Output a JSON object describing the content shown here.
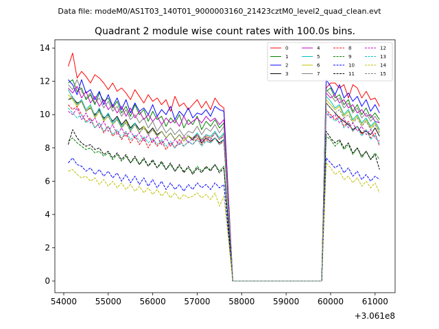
{
  "chart_data": {
    "type": "line",
    "suptitle": "Data file: modeM0/AS1T03_140T01_9000003160_21423cztM0_level2_quad_clean.evt",
    "title": "Quadrant 2 module wise count rates with 100.0s bins.",
    "xlabel": "",
    "ylabel": "",
    "offset_label": "+3.061e8",
    "xlim": [
      53800,
      61450
    ],
    "ylim": [
      -0.7,
      14.5
    ],
    "xticks": [
      54000,
      55000,
      56000,
      57000,
      58000,
      59000,
      60000,
      61000
    ],
    "xtick_labels": [
      "54000",
      "55000",
      "56000",
      "57000",
      "58000",
      "59000",
      "60000",
      "61000"
    ],
    "yticks": [
      0,
      2,
      4,
      6,
      8,
      10,
      12,
      14
    ],
    "ytick_labels": [
      "0",
      "2",
      "4",
      "6",
      "8",
      "10",
      "12",
      "14"
    ],
    "x_segments": {
      "active1": {
        "start": 54100,
        "step": 100,
        "count": 36
      },
      "gap": {
        "start": 57800,
        "end": 59800
      },
      "active2": {
        "start": 59900,
        "step": 100,
        "count": 13
      }
    },
    "series": [
      {
        "name": "0",
        "color": "#ff0000",
        "dash": "solid",
        "values": [
          12.9,
          13.7,
          12.2,
          12.6,
          12.3,
          11.9,
          12.4,
          12.2,
          11.9,
          11.5,
          11.9,
          11.4,
          11.6,
          11.3,
          10.9,
          11.5,
          11.1,
          10.7,
          11.2,
          10.8,
          11.0,
          10.6,
          10.9,
          10.2,
          11.1,
          10.5,
          10.7,
          10.3,
          10.6,
          10.9,
          10.4,
          10.8,
          10.3,
          11.0,
          10.6,
          10.4
        ],
        "values2": [
          11.6,
          11.9,
          11.9,
          11.6,
          11.8,
          11.0,
          11.8,
          11.6,
          11.0,
          11.4,
          10.9,
          11.0,
          10.5
        ]
      },
      {
        "name": "1",
        "color": "#008000",
        "dash": "solid",
        "values": [
          11.9,
          12.1,
          11.4,
          11.6,
          10.9,
          11.2,
          10.6,
          11.3,
          10.8,
          11.0,
          10.4,
          10.8,
          10.1,
          10.5,
          9.9,
          10.6,
          10.0,
          10.3,
          9.6,
          10.2,
          9.7,
          9.9,
          9.3,
          9.8,
          9.5,
          10.0,
          9.2,
          9.7,
          9.4,
          9.9,
          9.1,
          9.6,
          9.3,
          9.7,
          9.2,
          9.5
        ],
        "values2": [
          11.4,
          11.6,
          11.0,
          11.2,
          10.6,
          10.9,
          10.2,
          10.6,
          10.0,
          10.4,
          9.8,
          10.1,
          9.7
        ]
      },
      {
        "name": "2",
        "color": "#0000ff",
        "dash": "solid",
        "values": [
          12.1,
          11.8,
          11.2,
          12.1,
          11.3,
          11.5,
          10.9,
          11.4,
          10.6,
          11.2,
          10.5,
          11.0,
          10.3,
          10.9,
          10.1,
          10.7,
          10.2,
          10.4,
          10.0,
          10.6,
          9.9,
          10.3,
          10.0,
          10.5,
          9.7,
          10.2,
          9.9,
          10.4,
          9.8,
          10.1,
          10.0,
          10.3,
          9.9,
          10.5,
          10.3,
          10.2
        ],
        "values2": [
          12.1,
          11.7,
          11.2,
          11.8,
          11.0,
          11.3,
          10.8,
          11.1,
          10.5,
          10.9,
          10.2,
          10.6,
          10.1
        ]
      },
      {
        "name": "3",
        "color": "#000000",
        "dash": "solid",
        "values": [
          10.9,
          11.0,
          10.7,
          10.8,
          10.2,
          10.4,
          10.0,
          10.3,
          9.8,
          10.0,
          9.6,
          9.9,
          9.4,
          9.7,
          9.2,
          9.5,
          9.1,
          9.3,
          8.9,
          9.2,
          8.8,
          9.0,
          8.6,
          8.9,
          8.5,
          8.8,
          8.4,
          8.7,
          8.5,
          8.8,
          8.3,
          8.6,
          8.4,
          8.6,
          8.3,
          8.5
        ],
        "values2": [
          10.7,
          10.4,
          10.1,
          9.8,
          9.6,
          9.4,
          9.1,
          9.3,
          8.9,
          9.0,
          8.8,
          9.2,
          8.7
        ]
      },
      {
        "name": "4",
        "color": "#bf00bf",
        "dash": "solid",
        "values": [
          11.6,
          11.3,
          11.7,
          11.0,
          11.4,
          10.7,
          11.1,
          10.5,
          10.9,
          10.3,
          10.6,
          10.1,
          10.5,
          9.9,
          10.4,
          9.8,
          10.2,
          9.7,
          10.0,
          9.6,
          9.9,
          9.4,
          9.8,
          9.5,
          9.7,
          9.3,
          9.9,
          9.4,
          9.6,
          9.8,
          9.5,
          9.9,
          9.6,
          9.8,
          9.4,
          9.7
        ],
        "values2": [
          11.3,
          11.0,
          11.2,
          10.7,
          10.9,
          10.4,
          10.6,
          10.1,
          10.3,
          9.9,
          10.0,
          9.6,
          9.5
        ]
      },
      {
        "name": "5",
        "color": "#00bfbf",
        "dash": "solid",
        "values": [
          11.5,
          11.0,
          10.6,
          10.9,
          10.3,
          10.6,
          9.9,
          10.4,
          9.7,
          10.1,
          9.5,
          9.8,
          9.3,
          9.6,
          9.1,
          9.5,
          8.9,
          9.3,
          8.8,
          9.1,
          8.7,
          9.0,
          8.6,
          8.9,
          8.5,
          8.8,
          8.4,
          8.7,
          8.6,
          8.9,
          8.5,
          8.8,
          8.7,
          9.0,
          8.6,
          8.9
        ],
        "values2": [
          11.1,
          10.8,
          10.4,
          10.6,
          10.0,
          10.3,
          9.7,
          10.0,
          9.5,
          9.8,
          9.3,
          9.6,
          9.1
        ]
      },
      {
        "name": "6",
        "color": "#bfbf00",
        "dash": "solid",
        "values": [
          11.2,
          10.9,
          10.5,
          10.8,
          10.2,
          10.5,
          9.8,
          10.2,
          9.6,
          9.9,
          9.4,
          9.7,
          9.2,
          9.6,
          9.0,
          9.4,
          8.9,
          9.3,
          8.8,
          9.1,
          8.7,
          9.0,
          8.6,
          8.9,
          8.5,
          8.8,
          8.4,
          8.7,
          8.6,
          8.8,
          8.5,
          8.7,
          8.6,
          8.9,
          8.5,
          8.8
        ],
        "values2": [
          10.9,
          10.6,
          10.3,
          10.5,
          9.9,
          10.2,
          9.6,
          9.9,
          9.4,
          9.7,
          9.2,
          9.5,
          9.0
        ]
      },
      {
        "name": "7",
        "color": "#808080",
        "dash": "solid",
        "values": [
          11.8,
          11.5,
          12.1,
          11.4,
          11.0,
          11.3,
          10.7,
          11.0,
          10.4,
          10.8,
          10.2,
          10.5,
          9.9,
          10.3,
          9.7,
          10.0,
          9.5,
          9.8,
          9.2,
          9.6,
          9.0,
          9.4,
          8.9,
          9.2,
          8.8,
          9.1,
          8.7,
          9.0,
          8.9,
          9.3,
          8.8,
          9.2,
          9.0,
          9.4,
          8.9,
          9.3
        ],
        "values2": [
          11.5,
          11.2,
          10.8,
          11.0,
          10.4,
          10.7,
          10.1,
          10.4,
          9.8,
          10.1,
          9.6,
          9.9,
          9.5
        ]
      },
      {
        "name": "8",
        "color": "#ff0000",
        "dash": "dashed",
        "values": [
          10.6,
          10.3,
          10.5,
          10.0,
          9.6,
          9.8,
          9.2,
          9.5,
          8.9,
          9.3,
          8.7,
          9.0,
          8.5,
          8.9,
          8.3,
          8.7,
          8.2,
          8.6,
          8.0,
          8.5,
          8.1,
          8.4,
          7.9,
          8.3,
          8.0,
          8.5,
          8.1,
          8.4,
          8.2,
          8.6,
          8.2,
          8.5,
          8.3,
          8.6,
          8.2,
          8.4
        ],
        "values2": [
          10.3,
          10.0,
          9.7,
          9.9,
          9.3,
          9.6,
          9.0,
          9.3,
          8.8,
          9.1,
          8.6,
          8.9,
          8.1
        ]
      },
      {
        "name": "9",
        "color": "#008000",
        "dash": "dashed",
        "values": [
          8.4,
          8.6,
          8.3,
          8.1,
          7.9,
          8.0,
          7.7,
          7.8,
          7.5,
          7.7,
          7.3,
          7.6,
          7.2,
          7.5,
          7.1,
          7.4,
          7.0,
          7.3,
          6.9,
          7.2,
          6.8,
          7.1,
          6.7,
          7.0,
          6.6,
          6.9,
          6.6,
          6.8,
          6.5,
          6.9,
          6.6,
          6.8,
          6.7,
          7.0,
          6.6,
          6.9
        ],
        "values2": [
          8.7,
          8.5,
          8.1,
          8.4,
          7.9,
          8.2,
          7.6,
          8.0,
          7.4,
          7.8,
          7.3,
          7.7,
          7.3
        ]
      },
      {
        "name": "10",
        "color": "#0000ff",
        "dash": "dashed",
        "values": [
          7.1,
          7.4,
          7.0,
          6.9,
          6.6,
          6.8,
          6.4,
          6.7,
          6.3,
          6.6,
          6.2,
          6.5,
          6.0,
          6.4,
          5.9,
          6.3,
          5.8,
          6.2,
          5.7,
          6.1,
          5.6,
          6.0,
          5.5,
          5.9,
          5.5,
          5.8,
          5.4,
          5.8,
          5.5,
          5.9,
          5.6,
          5.8,
          5.5,
          5.9,
          5.6,
          5.8
        ],
        "values2": [
          7.4,
          7.1,
          6.8,
          7.0,
          6.5,
          6.8,
          6.3,
          6.6,
          6.1,
          6.4,
          6.0,
          6.3,
          6.1
        ]
      },
      {
        "name": "11",
        "color": "#000000",
        "dash": "dashed",
        "values": [
          8.2,
          9.1,
          8.6,
          8.3,
          8.1,
          8.2,
          7.9,
          8.0,
          7.6,
          7.8,
          7.4,
          7.7,
          7.3,
          7.6,
          7.1,
          7.5,
          7.0,
          7.4,
          6.9,
          7.3,
          6.8,
          7.2,
          6.7,
          7.1,
          6.6,
          7.0,
          6.5,
          6.9,
          6.4,
          6.8,
          6.5,
          6.9,
          6.6,
          7.0,
          6.5,
          6.8
        ],
        "values2": [
          9.0,
          8.6,
          8.3,
          8.5,
          8.0,
          8.3,
          7.7,
          8.0,
          7.5,
          7.8,
          7.3,
          7.6,
          6.7
        ]
      },
      {
        "name": "12",
        "color": "#bf00bf",
        "dash": "dashed",
        "values": [
          10.2,
          10.0,
          10.4,
          9.7,
          10.1,
          9.5,
          9.8,
          9.2,
          9.6,
          9.0,
          9.4,
          8.8,
          9.2,
          8.7,
          9.0,
          8.6,
          8.9,
          8.4,
          8.8,
          8.3,
          8.7,
          8.2,
          8.6,
          8.1,
          8.5,
          8.2,
          8.7,
          8.3,
          8.6,
          8.8,
          8.4,
          8.7,
          8.5,
          8.9,
          8.5,
          8.7
        ],
        "values2": [
          10.1,
          9.8,
          10.0,
          9.5,
          9.8,
          9.2,
          9.5,
          9.0,
          9.3,
          8.8,
          9.1,
          8.6,
          8.4
        ]
      },
      {
        "name": "13",
        "color": "#00bfbf",
        "dash": "dashed",
        "values": [
          10.4,
          10.1,
          9.8,
          10.0,
          9.5,
          9.7,
          9.2,
          9.5,
          9.0,
          9.3,
          8.8,
          9.1,
          8.6,
          9.0,
          8.5,
          8.8,
          8.4,
          8.7,
          8.3,
          8.6,
          8.2,
          8.5,
          8.1,
          8.4,
          8.0,
          8.3,
          8.1,
          8.4,
          8.2,
          8.5,
          8.1,
          8.4,
          8.3,
          8.6,
          8.2,
          8.5
        ],
        "values2": [
          10.2,
          9.9,
          9.6,
          9.8,
          9.2,
          9.5,
          9.0,
          9.3,
          8.7,
          9.1,
          8.5,
          8.8,
          8.2
        ]
      },
      {
        "name": "14",
        "color": "#bfbf00",
        "dash": "dashed",
        "values": [
          6.6,
          6.7,
          6.4,
          6.2,
          6.3,
          6.0,
          6.2,
          5.8,
          6.1,
          5.7,
          6.0,
          5.6,
          5.9,
          5.5,
          5.8,
          5.4,
          5.7,
          5.3,
          5.6,
          5.2,
          5.5,
          5.1,
          5.4,
          5.0,
          5.3,
          4.9,
          5.2,
          5.0,
          5.1,
          5.3,
          5.0,
          5.2,
          4.9,
          5.3,
          4.5,
          5.1
        ],
        "values2": [
          7.1,
          6.8,
          6.4,
          6.6,
          6.1,
          6.3,
          5.9,
          6.2,
          5.7,
          6.0,
          5.6,
          5.9,
          5.3
        ]
      },
      {
        "name": "15",
        "color": "#808080",
        "dash": "dashed",
        "values": [
          10.9,
          11.1,
          10.6,
          10.8,
          10.2,
          10.4,
          9.9,
          10.2,
          9.7,
          9.9,
          9.4,
          9.7,
          9.2,
          9.5,
          9.0,
          9.4,
          8.9,
          9.2,
          8.8,
          9.1,
          8.7,
          9.0,
          8.6,
          8.9,
          8.5,
          8.8,
          8.5,
          8.8,
          8.4,
          8.7,
          8.5,
          8.8,
          8.6,
          8.9,
          8.5,
          8.8
        ],
        "values2": [
          10.7,
          10.4,
          10.1,
          10.3,
          9.8,
          10.0,
          9.5,
          9.8,
          9.3,
          9.6,
          9.1,
          9.4,
          8.9
        ]
      }
    ],
    "legend": {
      "location": "top-right",
      "columns": 4
    }
  }
}
